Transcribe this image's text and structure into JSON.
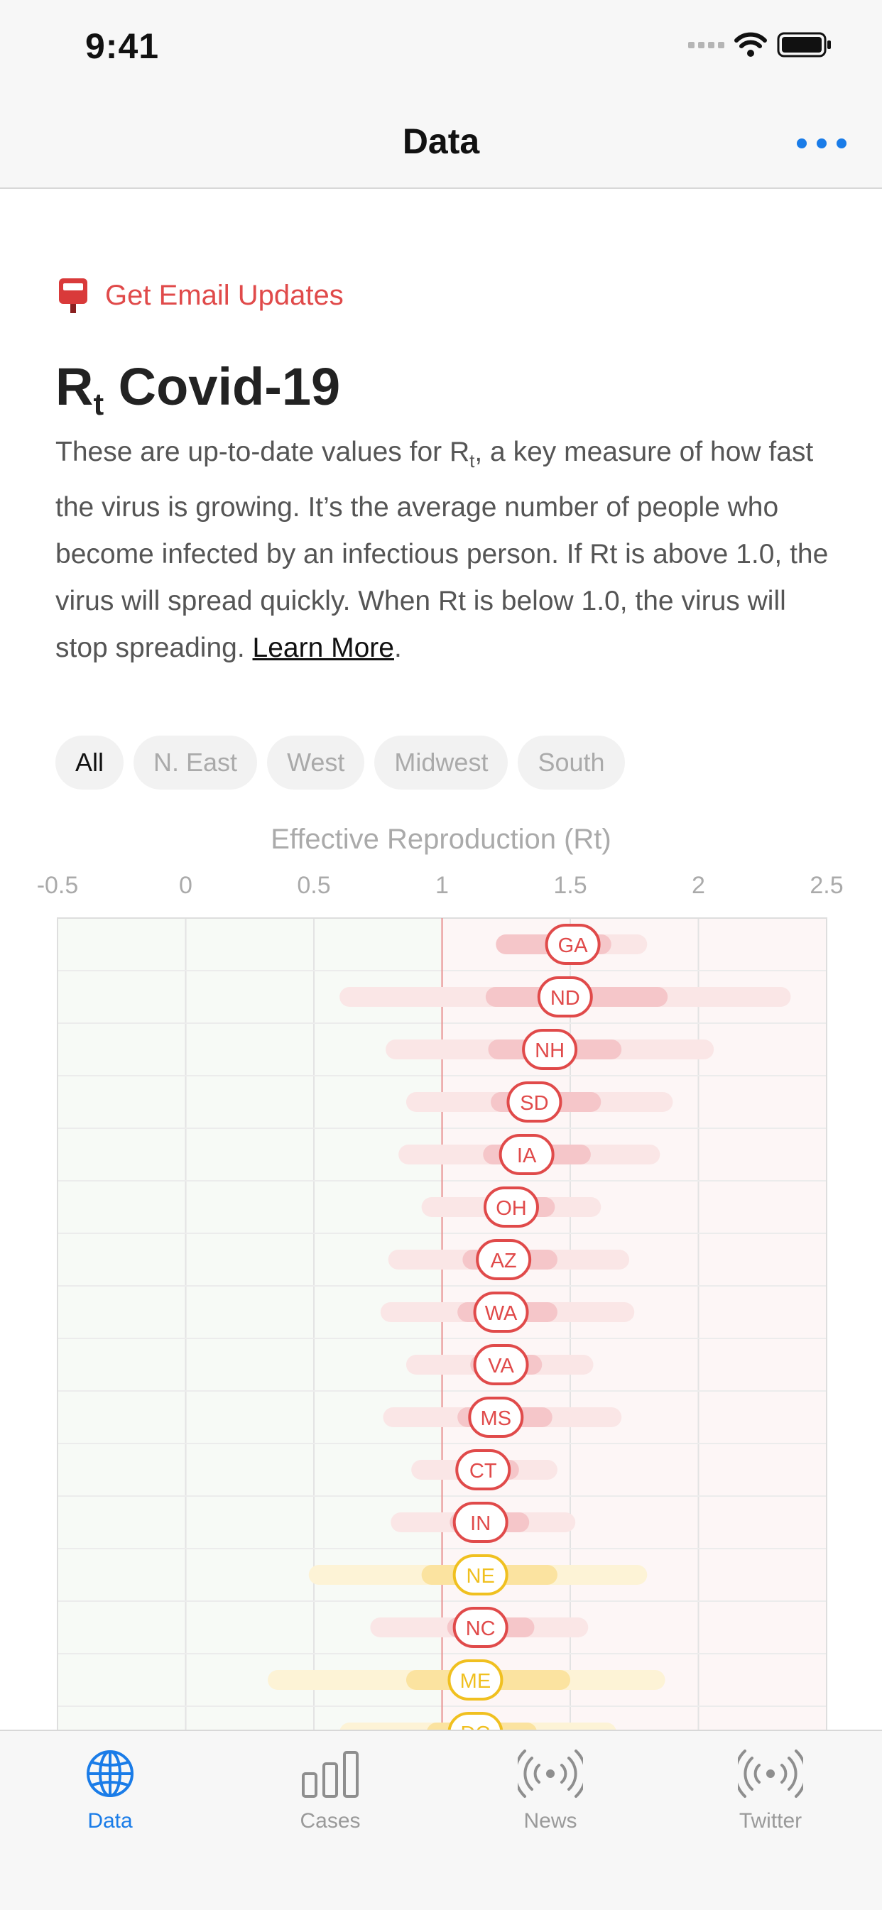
{
  "status_bar": {
    "time": "9:41"
  },
  "nav": {
    "title": "Data"
  },
  "email_updates": {
    "label": "Get Email Updates"
  },
  "header": {
    "title_main": "R",
    "title_sub": "t",
    "title_rest": " Covid-19"
  },
  "intro": {
    "part1": "These are up-to-date values for R",
    "part1_sub": "t",
    "part2": ", a key measure of how fast the virus is growing. It’s the average number of people who become infected by an infectious person. If Rt is above 1.0, the virus will spread quickly. When Rt is below 1.0, the virus will stop spreading. ",
    "link": "Learn More",
    "tail": "."
  },
  "filters": [
    {
      "label": "All",
      "active": true
    },
    {
      "label": "N. East",
      "active": false
    },
    {
      "label": "West",
      "active": false
    },
    {
      "label": "Midwest",
      "active": false
    },
    {
      "label": "South",
      "active": false
    }
  ],
  "colors": {
    "accent": "#1a7ce8",
    "red": "#e04a4a",
    "yellow": "#f0c020"
  },
  "chart_data": {
    "type": "scatter",
    "title": "Effective Reproduction (Rt)",
    "xlim": [
      -0.5,
      2.5
    ],
    "ticks": [
      "-0.5",
      "0",
      "0.5",
      "1",
      "1.5",
      "2",
      "2.5"
    ],
    "reference_line": 1,
    "rows": [
      {
        "state": "GA",
        "rt": 1.51,
        "ci50": [
          1.21,
          1.66
        ],
        "ci90": [
          1.21,
          1.8
        ],
        "status": "red"
      },
      {
        "state": "ND",
        "rt": 1.48,
        "ci50": [
          1.17,
          1.88
        ],
        "ci90": [
          0.6,
          2.36
        ],
        "status": "red"
      },
      {
        "state": "NH",
        "rt": 1.42,
        "ci50": [
          1.18,
          1.7
        ],
        "ci90": [
          0.78,
          2.06
        ],
        "status": "red"
      },
      {
        "state": "SD",
        "rt": 1.36,
        "ci50": [
          1.19,
          1.62
        ],
        "ci90": [
          0.86,
          1.9
        ],
        "status": "red"
      },
      {
        "state": "IA",
        "rt": 1.33,
        "ci50": [
          1.16,
          1.58
        ],
        "ci90": [
          0.83,
          1.85
        ],
        "status": "red"
      },
      {
        "state": "OH",
        "rt": 1.27,
        "ci50": [
          1.17,
          1.44
        ],
        "ci90": [
          0.92,
          1.62
        ],
        "status": "red"
      },
      {
        "state": "AZ",
        "rt": 1.24,
        "ci50": [
          1.08,
          1.45
        ],
        "ci90": [
          0.79,
          1.73
        ],
        "status": "red"
      },
      {
        "state": "WA",
        "rt": 1.23,
        "ci50": [
          1.06,
          1.45
        ],
        "ci90": [
          0.76,
          1.75
        ],
        "status": "red"
      },
      {
        "state": "VA",
        "rt": 1.23,
        "ci50": [
          1.11,
          1.39
        ],
        "ci90": [
          0.86,
          1.59
        ],
        "status": "red"
      },
      {
        "state": "MS",
        "rt": 1.21,
        "ci50": [
          1.06,
          1.43
        ],
        "ci90": [
          0.77,
          1.7
        ],
        "status": "red"
      },
      {
        "state": "CT",
        "rt": 1.16,
        "ci50": [
          1.07,
          1.3
        ],
        "ci90": [
          0.88,
          1.45
        ],
        "status": "red"
      },
      {
        "state": "IN",
        "rt": 1.15,
        "ci50": [
          1.03,
          1.34
        ],
        "ci90": [
          0.8,
          1.52
        ],
        "status": "red"
      },
      {
        "state": "NE",
        "rt": 1.15,
        "ci50": [
          0.92,
          1.45
        ],
        "ci90": [
          0.48,
          1.8
        ],
        "status": "yellow"
      },
      {
        "state": "NC",
        "rt": 1.15,
        "ci50": [
          1.02,
          1.36
        ],
        "ci90": [
          0.72,
          1.57
        ],
        "status": "red"
      },
      {
        "state": "ME",
        "rt": 1.13,
        "ci50": [
          0.86,
          1.5
        ],
        "ci90": [
          0.32,
          1.87
        ],
        "status": "yellow"
      },
      {
        "state": "DC",
        "rt": 1.13,
        "ci50": [
          0.94,
          1.37
        ],
        "ci90": [
          0.6,
          1.68
        ],
        "status": "yellow"
      }
    ]
  },
  "tabs": [
    {
      "label": "Data",
      "icon": "globe-icon",
      "active": true
    },
    {
      "label": "Cases",
      "icon": "bar-chart-icon",
      "active": false
    },
    {
      "label": "News",
      "icon": "broadcast-icon",
      "active": false
    },
    {
      "label": "Twitter",
      "icon": "broadcast-icon",
      "active": false
    }
  ]
}
